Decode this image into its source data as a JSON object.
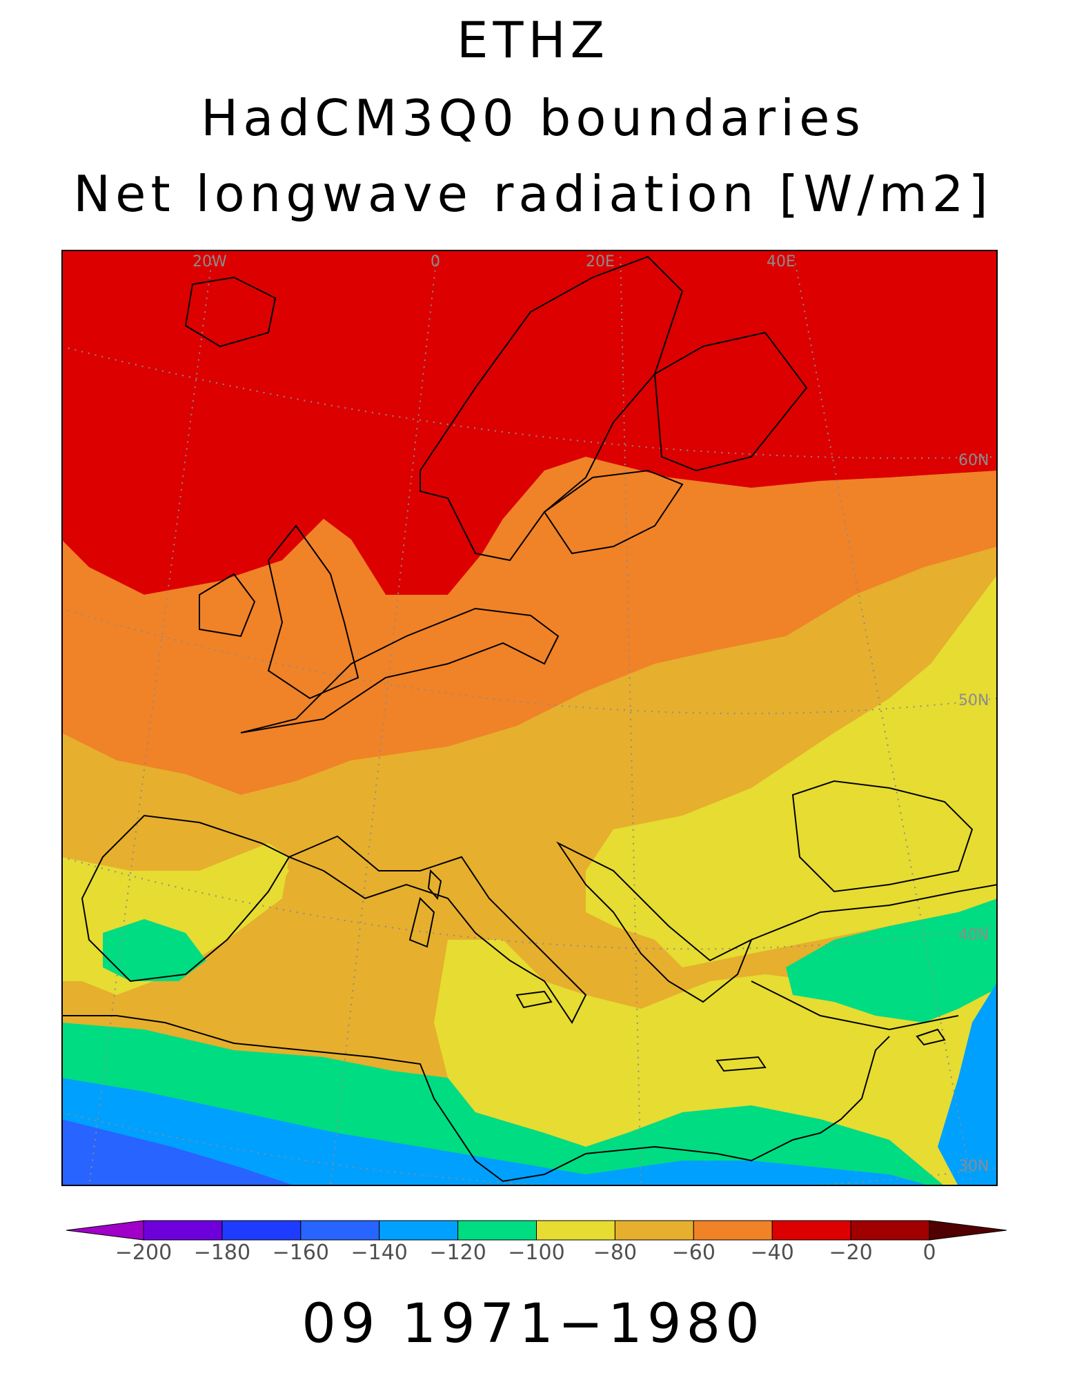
{
  "title_lines": [
    "ETHZ",
    "HadCM3Q0 boundaries",
    "Net longwave radiation [W/m2]"
  ],
  "footer": "09 1971−1980",
  "map": {
    "region": "Europe and Mediterranean",
    "projection": "rotated polar",
    "graticule_labels": {
      "longitudes": [
        "20W",
        "0",
        "20E",
        "40E"
      ],
      "latitudes": [
        "60N",
        "50N",
        "40N",
        "30N"
      ]
    },
    "field_pattern": [
      {
        "area": "North Atlantic, Scandinavia, northern Russia",
        "range": [
          -40,
          -20
        ]
      },
      {
        "area": "Central Europe, Baltic, France",
        "range": [
          -60,
          -40
        ]
      },
      {
        "area": "Southern Europe, Mediterranean Sea, Black Sea",
        "range": [
          -80,
          -60
        ]
      },
      {
        "area": "Iberia, Italy, Turkey, North Africa coast",
        "range": [
          -100,
          -80
        ]
      },
      {
        "area": "Morocco, Anatolia plateau, Sahara margins",
        "range": [
          -120,
          -100
        ]
      },
      {
        "area": "Sahara interior, Middle East desert",
        "range": [
          -140,
          -120
        ]
      }
    ]
  },
  "colorbar": {
    "tick_labels": [
      "−200",
      "−180",
      "−160",
      "−140",
      "−120",
      "−100",
      "−80",
      "−60",
      "−40",
      "−20",
      "0"
    ],
    "colors": [
      "#a000c8",
      "#6e00dc",
      "#1e3cff",
      "#2864ff",
      "#00a0ff",
      "#00dc82",
      "#e6dc32",
      "#e6af2d",
      "#f08228",
      "#dc0000",
      "#a00000",
      "#500000"
    ],
    "range": [
      -200,
      0
    ]
  }
}
